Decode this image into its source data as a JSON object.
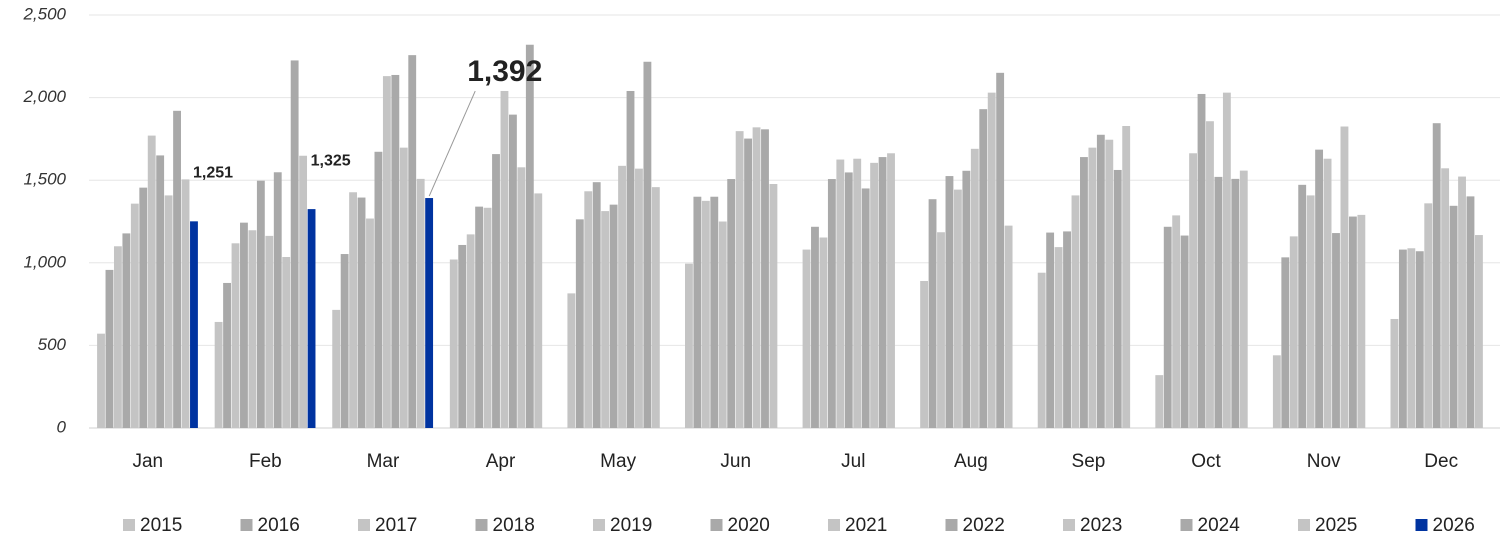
{
  "chart_data": {
    "type": "bar",
    "categories": [
      "Jan",
      "Feb",
      "Mar",
      "Apr",
      "May",
      "Jun",
      "Jul",
      "Aug",
      "Sep",
      "Oct",
      "Nov",
      "Dec"
    ],
    "series": [
      {
        "name": "2015",
        "color": "#c4c4c4",
        "values": [
          571,
          642,
          715,
          1020,
          815,
          995,
          1080,
          890,
          940,
          320,
          440,
          660
        ]
      },
      {
        "name": "2016",
        "color": "#a9a9a9",
        "values": [
          957,
          878,
          1053,
          1108,
          1263,
          1400,
          1218,
          1385,
          1183,
          1218,
          1033,
          1080
        ]
      },
      {
        "name": "2017",
        "color": "#c4c4c4",
        "values": [
          1100,
          1118,
          1427,
          1172,
          1433,
          1375,
          1153,
          1185,
          1095,
          1287,
          1160,
          1088
        ]
      },
      {
        "name": "2018",
        "color": "#a9a9a9",
        "values": [
          1178,
          1243,
          1395,
          1340,
          1488,
          1400,
          1507,
          1525,
          1190,
          1165,
          1472,
          1070
        ]
      },
      {
        "name": "2019",
        "color": "#c4c4c4",
        "values": [
          1358,
          1197,
          1268,
          1333,
          1313,
          1250,
          1625,
          1443,
          1408,
          1663,
          1408,
          1360
        ]
      },
      {
        "name": "2020",
        "color": "#a9a9a9",
        "values": [
          1455,
          1497,
          1672,
          1658,
          1352,
          1507,
          1547,
          1557,
          1640,
          2022,
          1685,
          1845
        ]
      },
      {
        "name": "2021",
        "color": "#c4c4c4",
        "values": [
          1770,
          1163,
          2130,
          2040,
          1587,
          1797,
          1630,
          1690,
          1697,
          1857,
          1630,
          1572
        ]
      },
      {
        "name": "2022",
        "color": "#a9a9a9",
        "values": [
          1650,
          1548,
          2137,
          1897,
          2040,
          1752,
          1450,
          1930,
          1775,
          1520,
          1180,
          1345
        ]
      },
      {
        "name": "2023",
        "color": "#c4c4c4",
        "values": [
          1408,
          1035,
          1697,
          1578,
          1570,
          1820,
          1605,
          2030,
          1745,
          2030,
          1825,
          1522
        ]
      },
      {
        "name": "2024",
        "color": "#a9a9a9",
        "values": [
          1920,
          2225,
          2257,
          2320,
          2217,
          1808,
          1640,
          2150,
          1562,
          1508,
          1280,
          1402
        ]
      },
      {
        "name": "2025",
        "color": "#c4c4c4",
        "values": [
          1505,
          1648,
          1508,
          1420,
          1458,
          1477,
          1663,
          1225,
          1828,
          1558,
          1290,
          1168
        ]
      },
      {
        "name": "2026",
        "color": "#0033a0",
        "values": [
          1251,
          1325,
          1392,
          null,
          null,
          null,
          null,
          null,
          null,
          null,
          null,
          null
        ],
        "value_labels": [
          "1,251",
          "1,325",
          "1,392",
          null,
          null,
          null,
          null,
          null,
          null,
          null,
          null,
          null
        ]
      }
    ],
    "ylim": [
      0,
      2500
    ],
    "yticks": [
      0,
      500,
      {
        "value": 1000,
        "label": "1,000"
      },
      {
        "value": 1500,
        "label": "1,500"
      },
      {
        "value": 2000,
        "label": "2,000"
      },
      {
        "value": 2500,
        "label": "2,500"
      }
    ],
    "grid": true,
    "legend": "bottom"
  }
}
